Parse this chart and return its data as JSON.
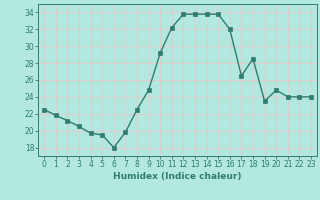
{
  "x": [
    0,
    1,
    2,
    3,
    4,
    5,
    6,
    7,
    8,
    9,
    10,
    11,
    12,
    13,
    14,
    15,
    16,
    17,
    18,
    19,
    20,
    21,
    22,
    23
  ],
  "y": [
    22.5,
    21.8,
    21.2,
    20.5,
    19.7,
    19.5,
    18.0,
    19.8,
    22.5,
    24.8,
    29.2,
    32.2,
    33.8,
    33.8,
    33.8,
    33.8,
    32.0,
    26.5,
    28.5,
    23.5,
    24.8,
    24.0,
    24.0,
    24.0
  ],
  "line_color": "#2e7d6e",
  "marker": "s",
  "markersize": 2.5,
  "linewidth": 1.0,
  "bg_color": "#b3e8e0",
  "grid_color": "#e8c8c8",
  "xlabel": "Humidex (Indice chaleur)",
  "ylim": [
    17,
    35
  ],
  "yticks": [
    18,
    20,
    22,
    24,
    26,
    28,
    30,
    32,
    34
  ],
  "xticks": [
    0,
    1,
    2,
    3,
    4,
    5,
    6,
    7,
    8,
    9,
    10,
    11,
    12,
    13,
    14,
    15,
    16,
    17,
    18,
    19,
    20,
    21,
    22,
    23
  ],
  "tick_color": "#2e7d6e",
  "spine_color": "#2e7d6e",
  "label_fontsize": 6.5,
  "tick_fontsize": 5.5
}
